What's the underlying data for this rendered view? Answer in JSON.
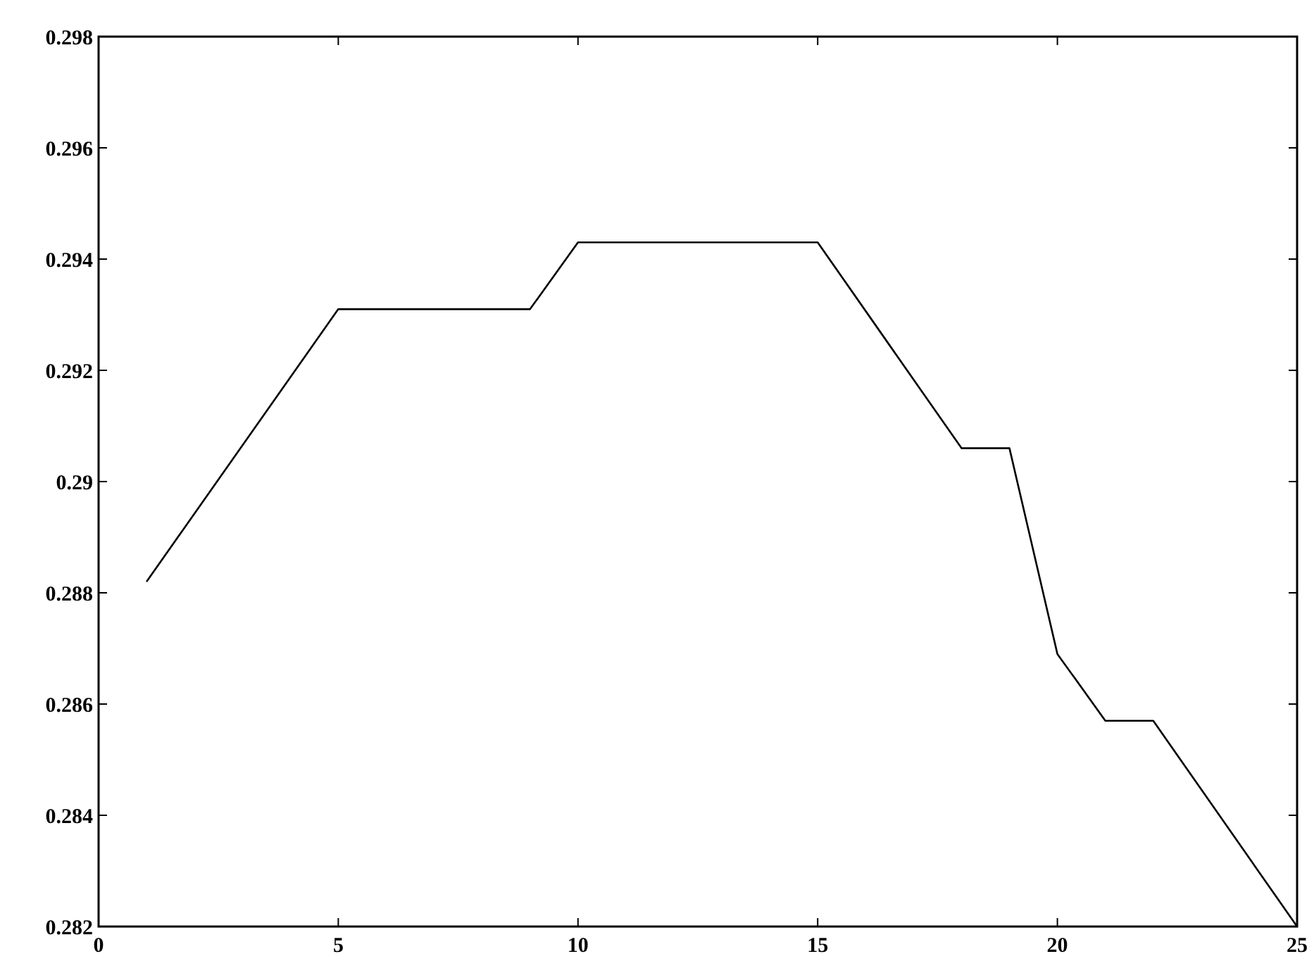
{
  "chart_data": {
    "type": "line",
    "x": [
      1,
      5,
      9,
      10,
      15,
      18,
      19,
      20,
      21,
      22,
      25
    ],
    "values": [
      0.2882,
      0.2931,
      0.2931,
      0.2943,
      0.2943,
      0.2906,
      0.2906,
      0.2869,
      0.2857,
      0.2857,
      0.282
    ],
    "color": "#000000",
    "xlim": [
      0,
      25
    ],
    "xticks": [
      0,
      5,
      10,
      15,
      20,
      25
    ],
    "ylim": [
      0.282,
      0.298
    ],
    "yticks": [
      0.282,
      0.284,
      0.286,
      0.288,
      {
        "value": 0.29,
        "label": "0.29"
      },
      0.292,
      0.294,
      0.296,
      0.298
    ],
    "grid": false,
    "marker": "none",
    "line_style": "solid"
  }
}
